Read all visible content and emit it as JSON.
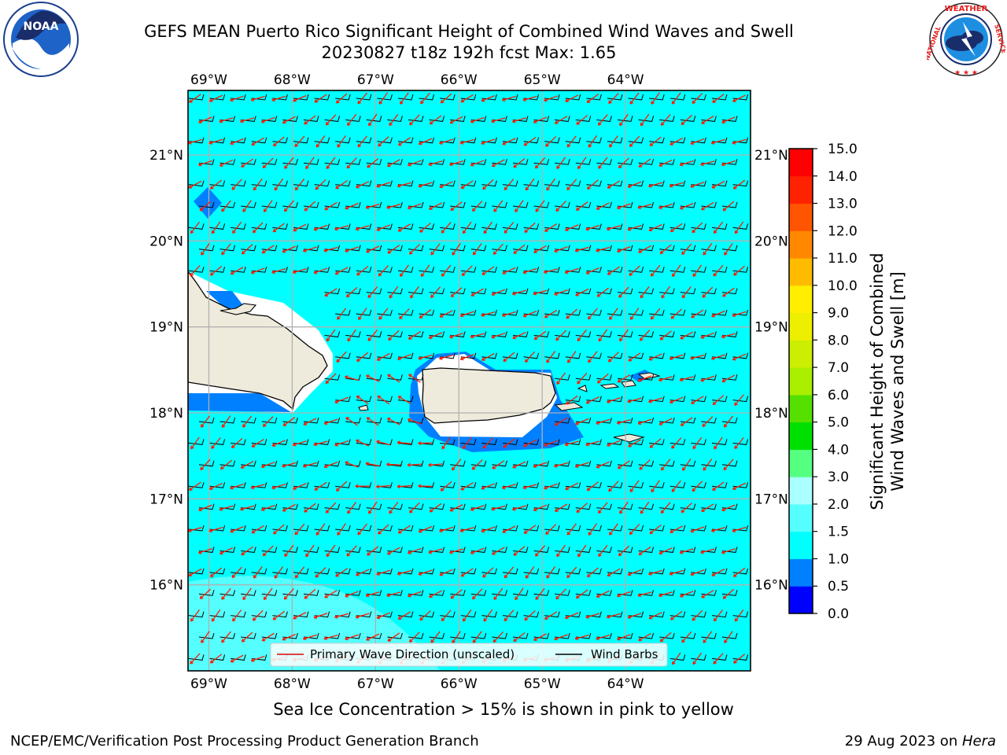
{
  "title": {
    "line1": "GEFS MEAN Puerto Rico Significant Height of Combined Wind Waves and Swell",
    "line2": "20230827 t18z 192h fcst   Max: 1.65"
  },
  "logos": {
    "left": {
      "name": "NOAA",
      "ring_text": "NATIONAL OCEANIC AND ATMOSPHERIC ADMINISTRATION · U.S. DEPARTMENT OF COMMERCE"
    },
    "right": {
      "name": "NATIONAL WEATHER SERVICE"
    }
  },
  "map": {
    "lon_labels": [
      "69°W",
      "68°W",
      "67°W",
      "66°W",
      "65°W",
      "64°W"
    ],
    "lat_labels": [
      "21°N",
      "20°N",
      "19°N",
      "18°N",
      "17°N",
      "16°N"
    ],
    "lon_values": [
      -69,
      -68,
      -67,
      -66,
      -65,
      -64
    ],
    "lat_values": [
      21,
      20,
      19,
      18,
      17,
      16
    ],
    "extent": {
      "lon_min": -69.25,
      "lon_max": -62.5,
      "lat_min": 15.0,
      "lat_max": 21.75
    },
    "ocean_color": "#00ffff",
    "land_color": "#efebdc",
    "legend": {
      "wave_label": "Primary Wave Direction (unscaled)",
      "wind_label": "Wind Barbs"
    }
  },
  "colorbar": {
    "ticks": [
      "0.0",
      "0.5",
      "1.0",
      "1.5",
      "2.0",
      "3.0",
      "4.0",
      "5.0",
      "6.0",
      "7.0",
      "8.0",
      "9.0",
      "10.0",
      "11.0",
      "12.0",
      "13.0",
      "14.0",
      "15.0"
    ],
    "colors": [
      "#0000ff",
      "#0080ff",
      "#00ffff",
      "#55ffff",
      "#aaffff",
      "#55ff80",
      "#00e000",
      "#55e000",
      "#aaee00",
      "#ccee00",
      "#eeee00",
      "#ffee00",
      "#ffbb00",
      "#ff8800",
      "#ff5500",
      "#ff2200",
      "#ff0000"
    ],
    "label_line1": "Significant Height of Combined",
    "label_line2": "Wind Waves and Swell [m]"
  },
  "caption": "Sea Ice Concentration > 15% is shown in pink to yellow",
  "footer": {
    "left": "NCEP/EMC/Verification Post Processing Product Generation Branch",
    "right_prefix": "29 Aug 2023 on ",
    "right_host": "Hera"
  }
}
